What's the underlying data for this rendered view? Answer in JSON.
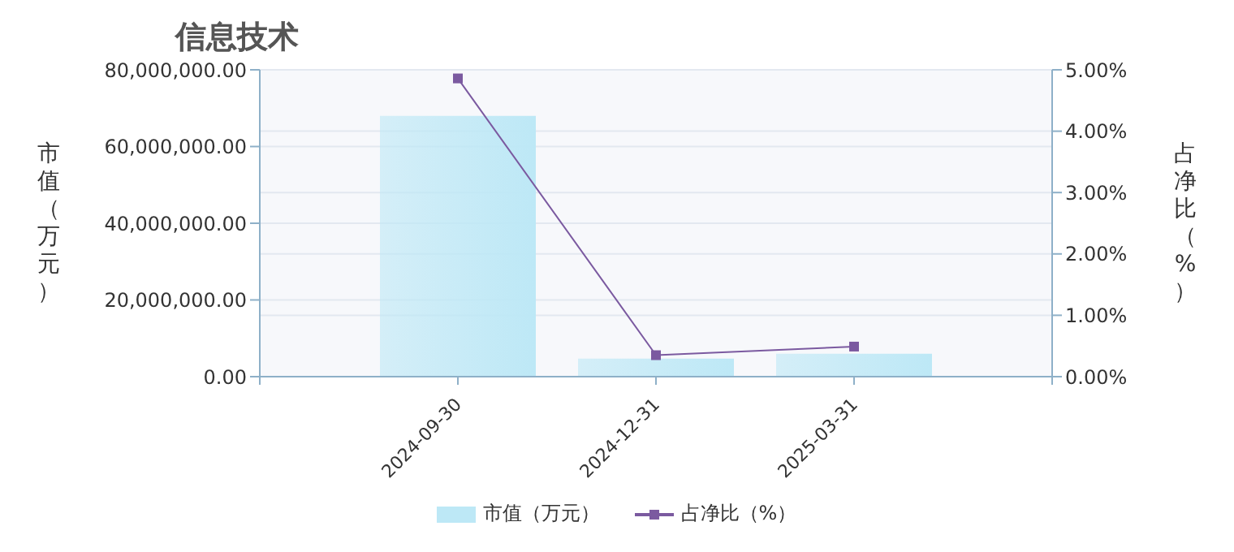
{
  "chart_data": {
    "type": "bar",
    "title": "信息技术",
    "ylabel": "市值（万元）",
    "y2label": "占净比（%）",
    "categories": [
      null,
      "2024-09-30",
      "2024-12-31",
      "2025-03-31",
      null
    ],
    "series": [
      {
        "name": "市值（万元）",
        "color": "#bde8f6",
        "values": [
          null,
          68000000,
          4700000,
          6000000,
          null
        ]
      },
      {
        "name": "占净比（%）",
        "type": "line",
        "axis": "y2",
        "color": "#7b5aa0",
        "marker": "square",
        "values": [
          null,
          4.86,
          0.35,
          0.49,
          null
        ]
      }
    ],
    "ylim": [
      0,
      80000000
    ],
    "yticks": [
      {
        "value": 0,
        "label": "0.00"
      },
      {
        "value": 20000000,
        "label": "20,000,000.00"
      },
      {
        "value": 40000000,
        "label": "40,000,000.00"
      },
      {
        "value": 60000000,
        "label": "60,000,000.00"
      },
      {
        "value": 80000000,
        "label": "80,000,000.00"
      }
    ],
    "y2lim": [
      0,
      5
    ],
    "y2ticks": [
      {
        "value": 0,
        "label": "0.00%"
      },
      {
        "value": 1,
        "label": "1.00%"
      },
      {
        "value": 2,
        "label": "2.00%"
      },
      {
        "value": 3,
        "label": "3.00%"
      },
      {
        "value": 4,
        "label": "4.00%"
      },
      {
        "value": 5,
        "label": "5.00%"
      }
    ],
    "grid": true,
    "legend": "bottom"
  }
}
